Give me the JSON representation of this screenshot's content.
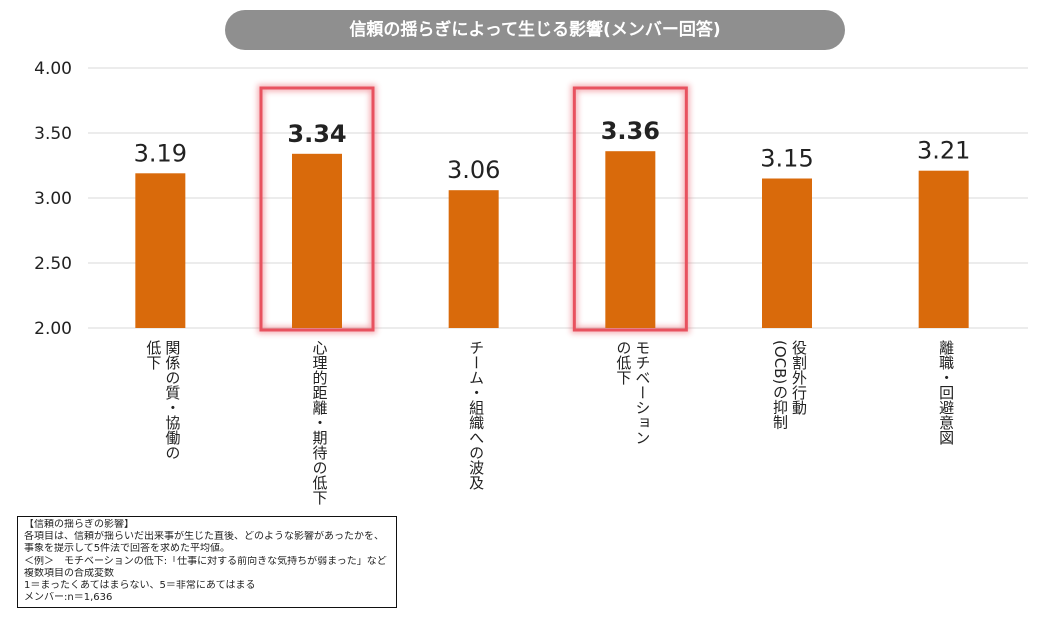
{
  "chart_data": {
    "type": "bar",
    "title": "信頼の揺らぎによって生じる影響(メンバー回答)",
    "categories": [
      "関係の質・協働の\n低下",
      "心理的距離・期待の低下",
      "チーム・組織への波及",
      "モチベーション\nの低下",
      "役割外行動\n(OCB)の抑制",
      "離職・回避意図"
    ],
    "values": [
      3.19,
      3.34,
      3.06,
      3.36,
      3.15,
      3.21
    ],
    "value_labels": [
      "3.19",
      "3.34",
      "3.06",
      "3.36",
      "3.15",
      "3.21"
    ],
    "highlighted": [
      false,
      true,
      false,
      true,
      false,
      false
    ],
    "ylim": [
      2.0,
      4.0
    ],
    "yticks": [
      "2.00",
      "2.50",
      "3.00",
      "3.50",
      "4.00"
    ],
    "ytick_values": [
      2.0,
      2.5,
      3.0,
      3.5,
      4.0
    ],
    "grid": true,
    "xlabel": "",
    "ylabel": "",
    "colors": {
      "bar": "#d96a0b",
      "highlight": "#e8525f",
      "grid": "#d9d9d9",
      "title_bg": "#8f8f8f"
    }
  },
  "note": {
    "heading": "【信頼の揺らぎの影響】",
    "lines": [
      "各項目は、信頼が揺らいだ出来事が生じた直後、どのような影響があったかを、",
      "事象を提示して5件法で回答を求めた平均値。",
      "＜例＞　モチベーションの低下:「仕事に対する前向きな気持ちが弱まった」など",
      "複数項目の合成変数",
      "1＝まったくあてはまらない、5＝非常にあてはまる",
      "メンバー:n＝1,636"
    ]
  }
}
